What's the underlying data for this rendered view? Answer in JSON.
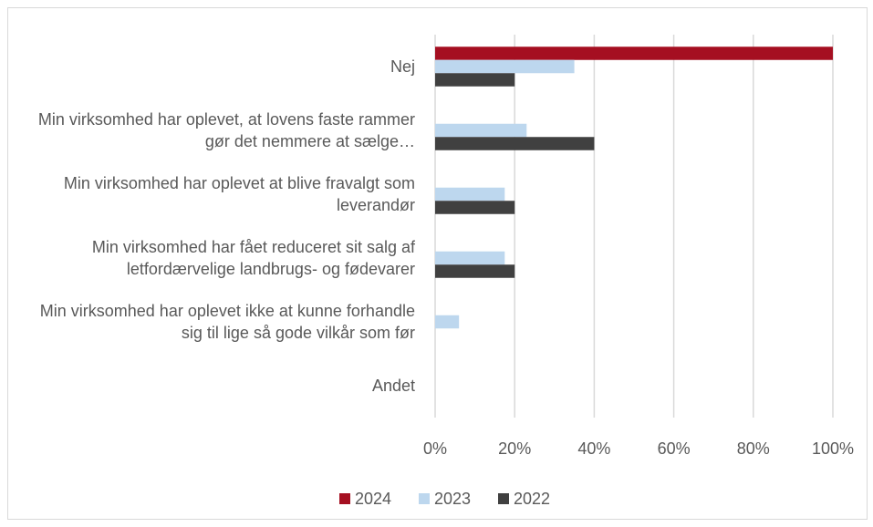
{
  "chart_data": {
    "type": "bar",
    "orientation": "horizontal",
    "categories": [
      "Nej",
      "Min virksomhed har oplevet, at lovens faste rammer gør det nemmere at sælge…",
      "Min virksomhed har oplevet at blive fravalgt som leverandør",
      "Min virksomhed har fået reduceret sit salg af letfordærvelige landbrugs- og fødevarer",
      "Min virksomhed har oplevet ikke at kunne forhandle sig til lige så gode vilkår som før",
      "Andet"
    ],
    "series": [
      {
        "name": "2024",
        "color": "#a50f21",
        "values": [
          100,
          0,
          0,
          0,
          0,
          0
        ]
      },
      {
        "name": "2023",
        "color": "#bdd7ee",
        "values": [
          35,
          23,
          17.5,
          17.5,
          6,
          0
        ]
      },
      {
        "name": "2022",
        "color": "#404040",
        "values": [
          20,
          40,
          20,
          20,
          0,
          0
        ]
      }
    ],
    "xlim": [
      0,
      100
    ],
    "xticks": [
      {
        "value": 0,
        "label": "0%"
      },
      {
        "value": 20,
        "label": "20%"
      },
      {
        "value": 40,
        "label": "40%"
      },
      {
        "value": 60,
        "label": "60%"
      },
      {
        "value": 80,
        "label": "80%"
      },
      {
        "value": 100,
        "label": "100%"
      }
    ],
    "grid": true,
    "legend": "bottom"
  }
}
